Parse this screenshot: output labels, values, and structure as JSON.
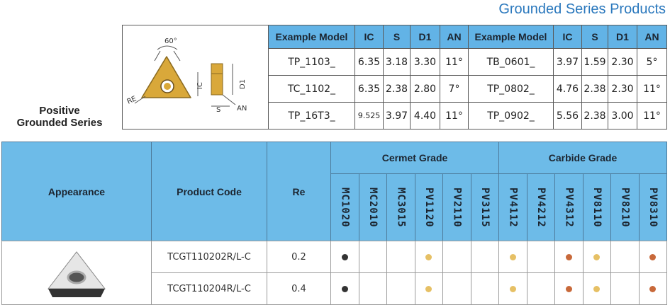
{
  "header": {
    "title": "Grounded Series Products"
  },
  "section_label": [
    "Positive",
    "Grounded Series"
  ],
  "diagram": {
    "labels": {
      "angle": "60°",
      "re": "RE",
      "ic": "IC",
      "d1": "D1",
      "s": "S",
      "an": "AN"
    }
  },
  "spec_table": {
    "columns": [
      "Example Model",
      "IC",
      "S",
      "D1",
      "AN",
      "Example Model",
      "IC",
      "S",
      "D1",
      "AN"
    ],
    "rows": [
      [
        "TP_1103_",
        "6.35",
        "3.18",
        "3.30",
        "11°",
        "TB_0601_",
        "3.97",
        "1.59",
        "2.30",
        "5°"
      ],
      [
        "TC_1102_",
        "6.35",
        "2.38",
        "2.80",
        "7°",
        "TP_0802_",
        "4.76",
        "2.38",
        "2.30",
        "11°"
      ],
      [
        "TP_16T3_",
        "9.525",
        "3.97",
        "4.40",
        "11°",
        "TP_0902_",
        "5.56",
        "2.38",
        "3.00",
        "11°"
      ]
    ]
  },
  "grade_table": {
    "columns": {
      "appearance": "Appearance",
      "product_code": "Product Code",
      "re": "Re"
    },
    "groups": [
      {
        "name": "Cermet Grade",
        "grades": [
          "MC1020",
          "MC2010",
          "MC3015",
          "PV1120",
          "PV2110",
          "PV3115"
        ]
      },
      {
        "name": "Carbide Grade",
        "grades": [
          "PV4112",
          "PV4212",
          "PV4312",
          "PV8110",
          "PV8210",
          "PV8310"
        ]
      }
    ],
    "rows": [
      {
        "product_code": "TCGT110202R/L-C",
        "re": "0.2",
        "marks": [
          "#333333",
          null,
          null,
          "#e6c065",
          null,
          null,
          "#e6c065",
          null,
          "#c8693a",
          "#e6c065",
          null,
          "#c8693a"
        ]
      },
      {
        "product_code": "TCGT110204R/L-C",
        "re": "0.4",
        "marks": [
          "#333333",
          null,
          null,
          "#e6c065",
          null,
          null,
          "#e6c065",
          null,
          "#c8693a",
          "#e6c065",
          null,
          "#c8693a"
        ]
      }
    ]
  }
}
